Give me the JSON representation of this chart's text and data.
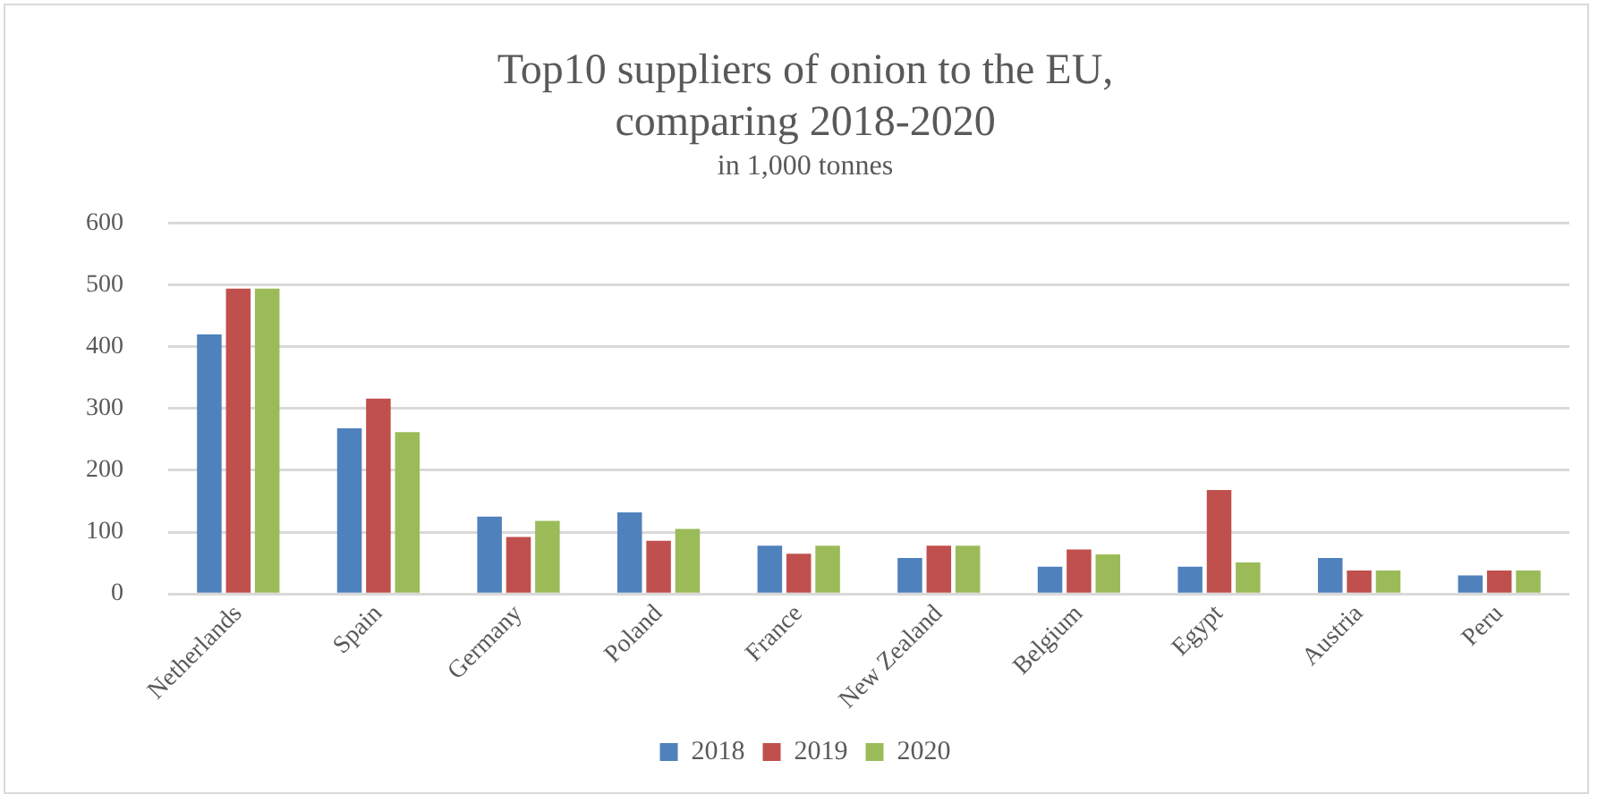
{
  "chart_data": {
    "type": "bar",
    "title": [
      "Top10 suppliers of onion to the EU,",
      "comparing 2018-2020"
    ],
    "subtitle": "in 1,000 tonnes",
    "categories": [
      "Netherlands",
      "Spain",
      "Germany",
      "Poland",
      "France",
      "New Zealand",
      "Belgium",
      "Egypt",
      "Austria",
      "Peru"
    ],
    "series": [
      {
        "name": "2018",
        "color": "#4f81bd",
        "values": [
          420,
          268,
          125,
          132,
          78,
          58,
          44,
          44,
          58,
          30
        ]
      },
      {
        "name": "2019",
        "color": "#c0504d",
        "values": [
          494,
          316,
          92,
          86,
          65,
          78,
          72,
          168,
          38,
          38
        ]
      },
      {
        "name": "2020",
        "color": "#9bbb59",
        "values": [
          494,
          262,
          118,
          105,
          78,
          78,
          64,
          51,
          38,
          38
        ]
      }
    ],
    "ylim": [
      0,
      600
    ],
    "yticks": [
      0,
      100,
      200,
      300,
      400,
      500,
      600
    ],
    "grid": "y",
    "legend": "bottom"
  }
}
